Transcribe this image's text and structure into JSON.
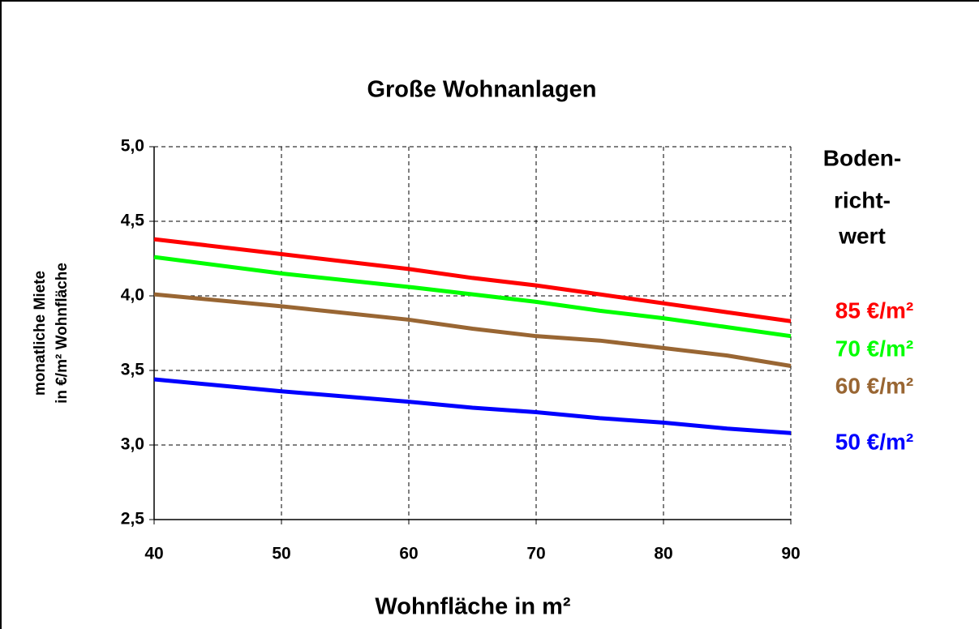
{
  "chart_data": {
    "type": "line",
    "title": "Große Wohnanlagen",
    "xlabel": "Wohnfläche in m²",
    "ylabel": [
      "monatliche Miete",
      "in €/m² Wohnfläche"
    ],
    "legend_title": [
      "Boden-",
      "richt-",
      "wert"
    ],
    "x": [
      40,
      50,
      60,
      65,
      70,
      75,
      80,
      85,
      90
    ],
    "series": [
      {
        "name": "85 €/m²",
        "color": "#ff0000",
        "values": [
          4.38,
          4.28,
          4.18,
          4.12,
          4.07,
          4.01,
          3.95,
          3.89,
          3.83
        ]
      },
      {
        "name": "70 €/m²",
        "color": "#00ff00",
        "values": [
          4.26,
          4.15,
          4.06,
          4.01,
          3.96,
          3.9,
          3.85,
          3.79,
          3.73
        ]
      },
      {
        "name": "60 €/m²",
        "color": "#996633",
        "values": [
          4.01,
          3.93,
          3.84,
          3.78,
          3.73,
          3.7,
          3.65,
          3.6,
          3.53
        ]
      },
      {
        "name": "50 €/m²",
        "color": "#0000ff",
        "values": [
          3.44,
          3.36,
          3.29,
          3.25,
          3.22,
          3.18,
          3.15,
          3.11,
          3.08
        ]
      }
    ],
    "xlim": [
      40,
      90
    ],
    "xticks": [
      40,
      50,
      60,
      70,
      80,
      90
    ],
    "ylim": [
      2.5,
      5.0
    ],
    "yticks": [
      {
        "value": 2.5,
        "label": "2,5"
      },
      {
        "value": 3.0,
        "label": "3,0"
      },
      {
        "value": 3.5,
        "label": "3,5"
      },
      {
        "value": 4.0,
        "label": "4,0"
      },
      {
        "value": 4.5,
        "label": "4,5"
      },
      {
        "value": 5.0,
        "label": "5,0"
      }
    ],
    "grid": true
  }
}
